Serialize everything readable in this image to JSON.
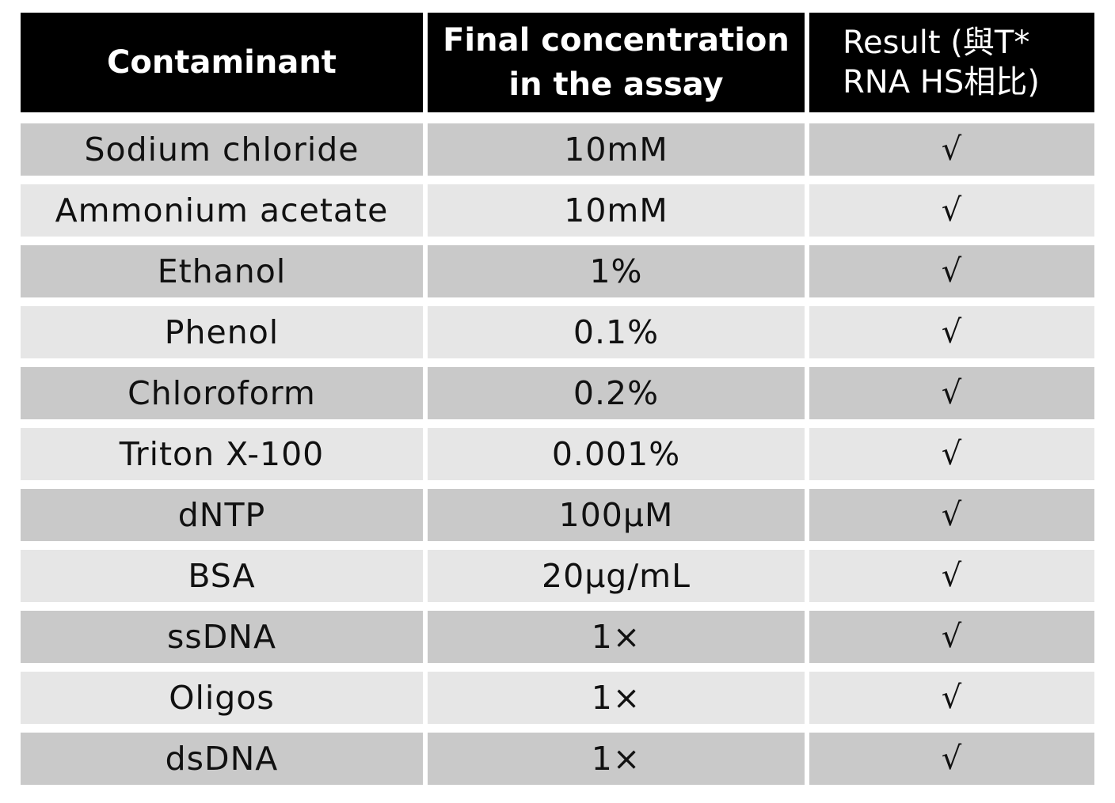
{
  "table": {
    "headers": [
      "Contaminant",
      "Final concentration\nin the assay",
      "Result (與T*\nRNA HS相比)"
    ],
    "rows": [
      [
        "Sodium chloride",
        "10mM",
        "√"
      ],
      [
        "Ammonium acetate",
        "10mM",
        "√"
      ],
      [
        "Ethanol",
        "1%",
        "√"
      ],
      [
        "Phenol",
        "0.1%",
        "√"
      ],
      [
        "Chloroform",
        "0.2%",
        "√"
      ],
      [
        "Triton X-100",
        "0.001%",
        "√"
      ],
      [
        "dNTP",
        "100µM",
        "√"
      ],
      [
        "BSA",
        "20µg/mL",
        "√"
      ],
      [
        "ssDNA",
        "1×",
        "√"
      ],
      [
        "Oligos",
        "1×",
        "√"
      ],
      [
        "dsDNA",
        "1×",
        "√"
      ]
    ]
  },
  "colors": {
    "header_bg": "#000000",
    "header_text": "#ffffff",
    "row_dark": "#c9c9c9",
    "row_light": "#e6e6e6"
  }
}
